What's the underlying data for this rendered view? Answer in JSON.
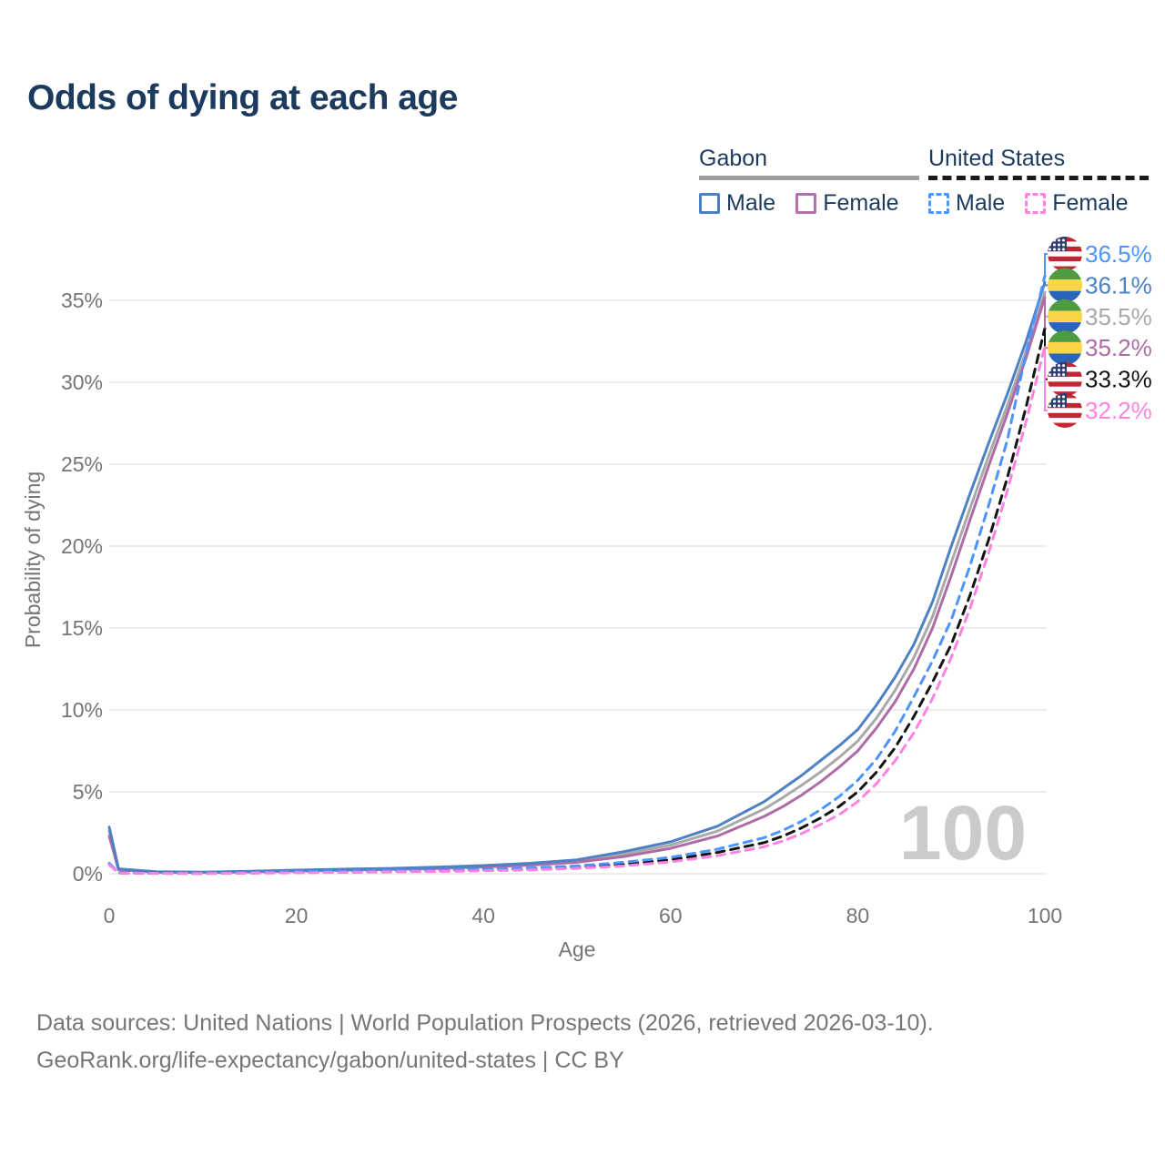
{
  "title": "Odds of dying at each age",
  "legend": {
    "groups": [
      {
        "name": "Gabon",
        "line_style": "solid",
        "line_color": "#9e9e9e",
        "items": [
          {
            "label": "Male",
            "color": "#4e81c4",
            "dashed": false
          },
          {
            "label": "Female",
            "color": "#b573ae",
            "dashed": false
          }
        ]
      },
      {
        "name": "United States",
        "line_style": "dashed",
        "line_color": "#1a1a1a",
        "items": [
          {
            "label": "Male",
            "color": "#4d94ff",
            "dashed": true
          },
          {
            "label": "Female",
            "color": "#ff82e2",
            "dashed": true
          }
        ]
      }
    ]
  },
  "footer": {
    "line1": "Data sources: United Nations | World Population Prospects (2026, retrieved 2026-03-10).",
    "line2": "GeoRank.org/life-expectancy/gabon/united-states | CC BY"
  },
  "chart_data": {
    "type": "line",
    "title": "Odds of dying at each age",
    "xlabel": "Age",
    "ylabel": "Probability of dying",
    "watermark": "100",
    "xlim": [
      0,
      100
    ],
    "ylim_percent": [
      0,
      36.5
    ],
    "x_ticks": [
      0,
      20,
      40,
      60,
      80,
      100
    ],
    "y_ticks_percent": [
      0,
      5,
      10,
      15,
      20,
      25,
      30,
      35
    ],
    "grid": "horizontal-only",
    "legend_position": "top-right",
    "ages": [
      0,
      1,
      5,
      10,
      15,
      20,
      25,
      30,
      35,
      40,
      45,
      50,
      55,
      60,
      65,
      70,
      72,
      74,
      76,
      78,
      80,
      82,
      84,
      86,
      88,
      90,
      92,
      94,
      96,
      98,
      100
    ],
    "series": [
      {
        "id": "gabon-average",
        "name": "Gabon — both sexes",
        "color": "#a9a9a9",
        "dashed": false,
        "flag": "gabon",
        "end_label": "35.5%",
        "values": [
          2.6,
          0.27,
          0.11,
          0.09,
          0.13,
          0.19,
          0.25,
          0.3,
          0.36,
          0.45,
          0.58,
          0.77,
          1.2,
          1.75,
          2.6,
          3.95,
          4.65,
          5.4,
          6.2,
          7.1,
          8.1,
          9.5,
          11.2,
          13.2,
          15.7,
          19.0,
          22.3,
          25.5,
          28.6,
          31.9,
          35.5
        ]
      },
      {
        "id": "gabon-female",
        "name": "Gabon Female",
        "color": "#ae6ca6",
        "dashed": false,
        "flag": "gabon",
        "end_label": "35.2%",
        "values": [
          2.3,
          0.24,
          0.1,
          0.08,
          0.11,
          0.16,
          0.21,
          0.26,
          0.32,
          0.41,
          0.52,
          0.7,
          1.05,
          1.55,
          2.3,
          3.5,
          4.1,
          4.8,
          5.6,
          6.5,
          7.5,
          8.9,
          10.5,
          12.5,
          15.0,
          18.2,
          21.6,
          24.9,
          28.1,
          31.5,
          35.2
        ]
      },
      {
        "id": "gabon-male",
        "name": "Gabon Male",
        "color": "#4e81c4",
        "dashed": false,
        "flag": "gabon",
        "end_label": "36.1%",
        "values": [
          2.85,
          0.3,
          0.12,
          0.1,
          0.15,
          0.22,
          0.28,
          0.33,
          0.4,
          0.5,
          0.64,
          0.85,
          1.35,
          1.95,
          2.9,
          4.4,
          5.2,
          6.0,
          6.9,
          7.8,
          8.8,
          10.3,
          12.0,
          14.0,
          16.6,
          20.0,
          23.2,
          26.3,
          29.3,
          32.5,
          36.1
        ]
      },
      {
        "id": "us-average",
        "name": "United States — both sexes",
        "color": "#141414",
        "dashed": true,
        "flag": "us",
        "end_label": "33.3%",
        "values": [
          0.6,
          0.05,
          0.025,
          0.018,
          0.05,
          0.09,
          0.12,
          0.15,
          0.18,
          0.22,
          0.29,
          0.4,
          0.58,
          0.85,
          1.3,
          1.9,
          2.3,
          2.8,
          3.4,
          4.1,
          5.0,
          6.2,
          7.7,
          9.6,
          11.7,
          14.0,
          17.0,
          20.4,
          24.2,
          28.5,
          33.3
        ]
      },
      {
        "id": "us-male",
        "name": "United States Male",
        "color": "#4d94ff",
        "dashed": true,
        "flag": "us",
        "end_label": "36.5%",
        "values": [
          0.65,
          0.05,
          0.03,
          0.02,
          0.06,
          0.12,
          0.16,
          0.19,
          0.22,
          0.27,
          0.35,
          0.48,
          0.7,
          1.0,
          1.5,
          2.2,
          2.65,
          3.2,
          3.9,
          4.7,
          5.7,
          7.0,
          8.7,
          10.8,
          13.0,
          15.5,
          18.8,
          22.5,
          26.5,
          31.8,
          36.5
        ]
      },
      {
        "id": "us-female",
        "name": "United States Female",
        "color": "#ff82e2",
        "dashed": true,
        "flag": "us",
        "end_label": "32.2%",
        "values": [
          0.55,
          0.04,
          0.02,
          0.015,
          0.035,
          0.06,
          0.08,
          0.11,
          0.14,
          0.18,
          0.24,
          0.33,
          0.48,
          0.72,
          1.1,
          1.65,
          2.0,
          2.45,
          3.0,
          3.6,
          4.4,
          5.5,
          6.9,
          8.6,
          10.7,
          13.2,
          16.2,
          19.6,
          23.4,
          27.6,
          32.2
        ]
      }
    ]
  }
}
